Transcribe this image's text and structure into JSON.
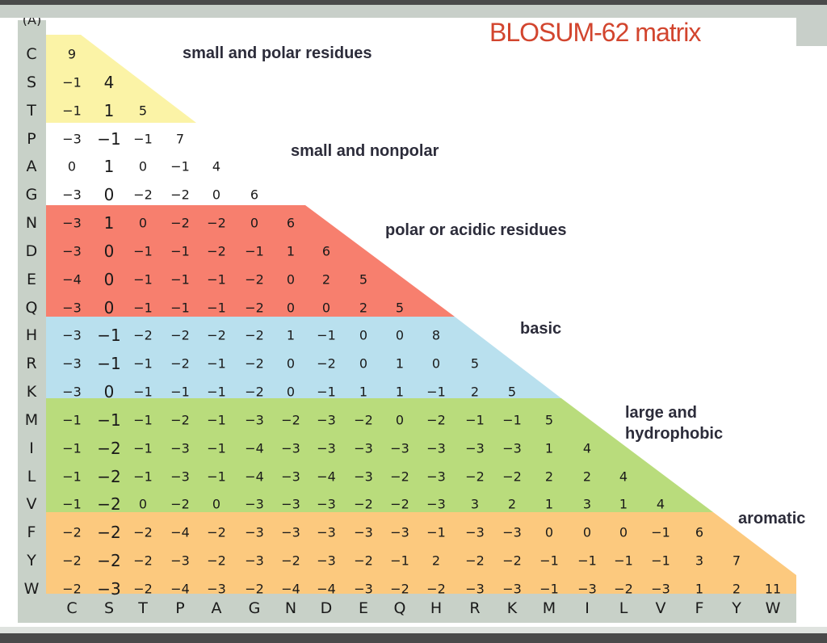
{
  "title": "BLOSUM-62 matrix",
  "top_partial_label": "(A)",
  "amino_acids": [
    "C",
    "S",
    "T",
    "P",
    "A",
    "G",
    "N",
    "D",
    "E",
    "Q",
    "H",
    "R",
    "K",
    "M",
    "I",
    "L",
    "V",
    "F",
    "Y",
    "W"
  ],
  "group_labels": [
    {
      "text": "small and polar residues"
    },
    {
      "text": "small and nonpolar"
    },
    {
      "text": "polar or acidic residues"
    },
    {
      "text": "basic"
    },
    {
      "text": "large and hydrophobic"
    },
    {
      "text": "aromatic"
    }
  ],
  "group_colors": {
    "small_polar": "#fbf3a6",
    "acidic": "#f77f6e",
    "basic": "#b9e0ee",
    "hydrophobic": "#b9dc7c",
    "aromatic": "#fcc97e",
    "axis": "#c8d1c8",
    "title": "#d2452e"
  },
  "matrix": [
    [
      "9"
    ],
    [
      "-1",
      "4"
    ],
    [
      "-1",
      "1",
      "5"
    ],
    [
      "-3",
      "-1",
      "-1",
      "7"
    ],
    [
      "0",
      "1",
      "0",
      "-1",
      "4"
    ],
    [
      "-3",
      "0",
      "-2",
      "-2",
      "0",
      "6"
    ],
    [
      "-3",
      "1",
      "0",
      "-2",
      "-2",
      "0",
      "6"
    ],
    [
      "-3",
      "0",
      "-1",
      "-1",
      "-2",
      "-1",
      "1",
      "6"
    ],
    [
      "-4",
      "0",
      "-1",
      "-1",
      "-1",
      "-2",
      "0",
      "2",
      "5"
    ],
    [
      "-3",
      "0",
      "-1",
      "-1",
      "-1",
      "-2",
      "0",
      "0",
      "2",
      "5"
    ],
    [
      "-3",
      "-1",
      "-2",
      "-2",
      "-2",
      "-2",
      "1",
      "-1",
      "0",
      "0",
      "8"
    ],
    [
      "-3",
      "-1",
      "-1",
      "-2",
      "-1",
      "-2",
      "0",
      "-2",
      "0",
      "1",
      "0",
      "5"
    ],
    [
      "-3",
      "0",
      "-1",
      "-1",
      "-1",
      "-2",
      "0",
      "-1",
      "1",
      "1",
      "-1",
      "2",
      "5"
    ],
    [
      "-1",
      "-1",
      "-1",
      "-2",
      "-1",
      "-3",
      "-2",
      "-3",
      "-2",
      "0",
      "-2",
      "-1",
      "-1",
      "5"
    ],
    [
      "-1",
      "-2",
      "-1",
      "-3",
      "-1",
      "-4",
      "-3",
      "-3",
      "-3",
      "-3",
      "-3",
      "-3",
      "-3",
      "1",
      "4"
    ],
    [
      "-1",
      "-2",
      "-1",
      "-3",
      "-1",
      "-4",
      "-3",
      "-4",
      "-3",
      "-2",
      "-3",
      "-2",
      "-2",
      "2",
      "2",
      "4"
    ],
    [
      "-1",
      "-2",
      "0",
      "-2",
      "0",
      "-3",
      "-3",
      "-3",
      "-2",
      "-2",
      "-3",
      "3",
      "2",
      "1",
      "3",
      "1",
      "4"
    ],
    [
      "-2",
      "-2",
      "-2",
      "-4",
      "-2",
      "-3",
      "-3",
      "-3",
      "-3",
      "-3",
      "-1",
      "-3",
      "-3",
      "0",
      "0",
      "0",
      "-1",
      "6"
    ],
    [
      "-2",
      "-2",
      "-2",
      "-3",
      "-2",
      "-3",
      "-2",
      "-3",
      "-2",
      "-1",
      "2",
      "-2",
      "-2",
      "-1",
      "-1",
      "-1",
      "-1",
      "3",
      "7"
    ],
    [
      "-2",
      "-3",
      "-2",
      "-4",
      "-3",
      "-2",
      "-4",
      "-4",
      "-3",
      "-2",
      "-2",
      "-3",
      "-3",
      "-1",
      "-3",
      "-2",
      "-3",
      "1",
      "2",
      "11"
    ]
  ]
}
